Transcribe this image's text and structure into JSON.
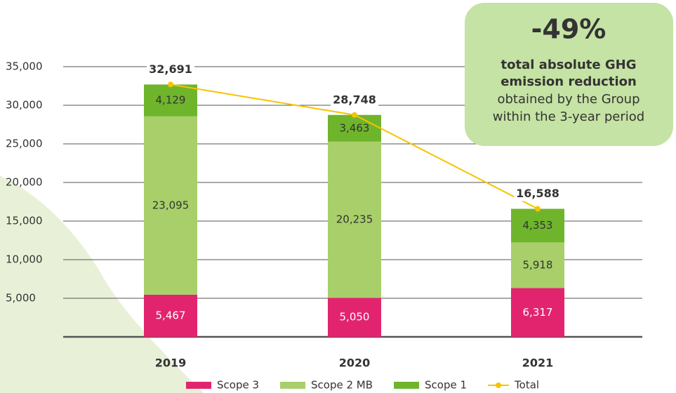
{
  "chart_data": {
    "type": "stacked_bar",
    "categories": [
      "2019",
      "2020",
      "2021"
    ],
    "series": [
      {
        "name": "Scope 3",
        "color": "#e2246f",
        "values": [
          5467,
          5050,
          6317
        ],
        "value_labels": [
          "5,467",
          "5,050",
          "6,317"
        ]
      },
      {
        "name": "Scope 2 MB",
        "color": "#a9cf6a",
        "values": [
          23095,
          20235,
          5918
        ],
        "value_labels": [
          "23,095",
          "20,235",
          "5,918"
        ]
      },
      {
        "name": "Scope 1",
        "color": "#6fb52c",
        "values": [
          4129,
          3463,
          4353
        ],
        "value_labels": [
          "4,129",
          "3,463",
          "4,353"
        ]
      }
    ],
    "total": {
      "name": "Total",
      "color": "#f5c400",
      "values": [
        32691,
        28748,
        16588
      ],
      "value_labels": [
        "32,691",
        "28,748",
        "16,588"
      ]
    },
    "ylim": [
      0,
      35000
    ],
    "yticks": [
      {
        "value": 5000,
        "label": "5,000"
      },
      {
        "value": 10000,
        "label": "10,000"
      },
      {
        "value": 15000,
        "label": "15,000"
      },
      {
        "value": 20000,
        "label": "20,000"
      },
      {
        "value": 25000,
        "label": "25,000"
      },
      {
        "value": 30000,
        "label": "30,000"
      },
      {
        "value": 35000,
        "label": "35,000"
      }
    ],
    "grid": true,
    "annotation": {
      "headline": "-49%",
      "bold_lines": [
        "total absolute GHG",
        "emission reduction"
      ],
      "lines": [
        "obtained by the Group",
        "within the 3-year period"
      ]
    }
  }
}
